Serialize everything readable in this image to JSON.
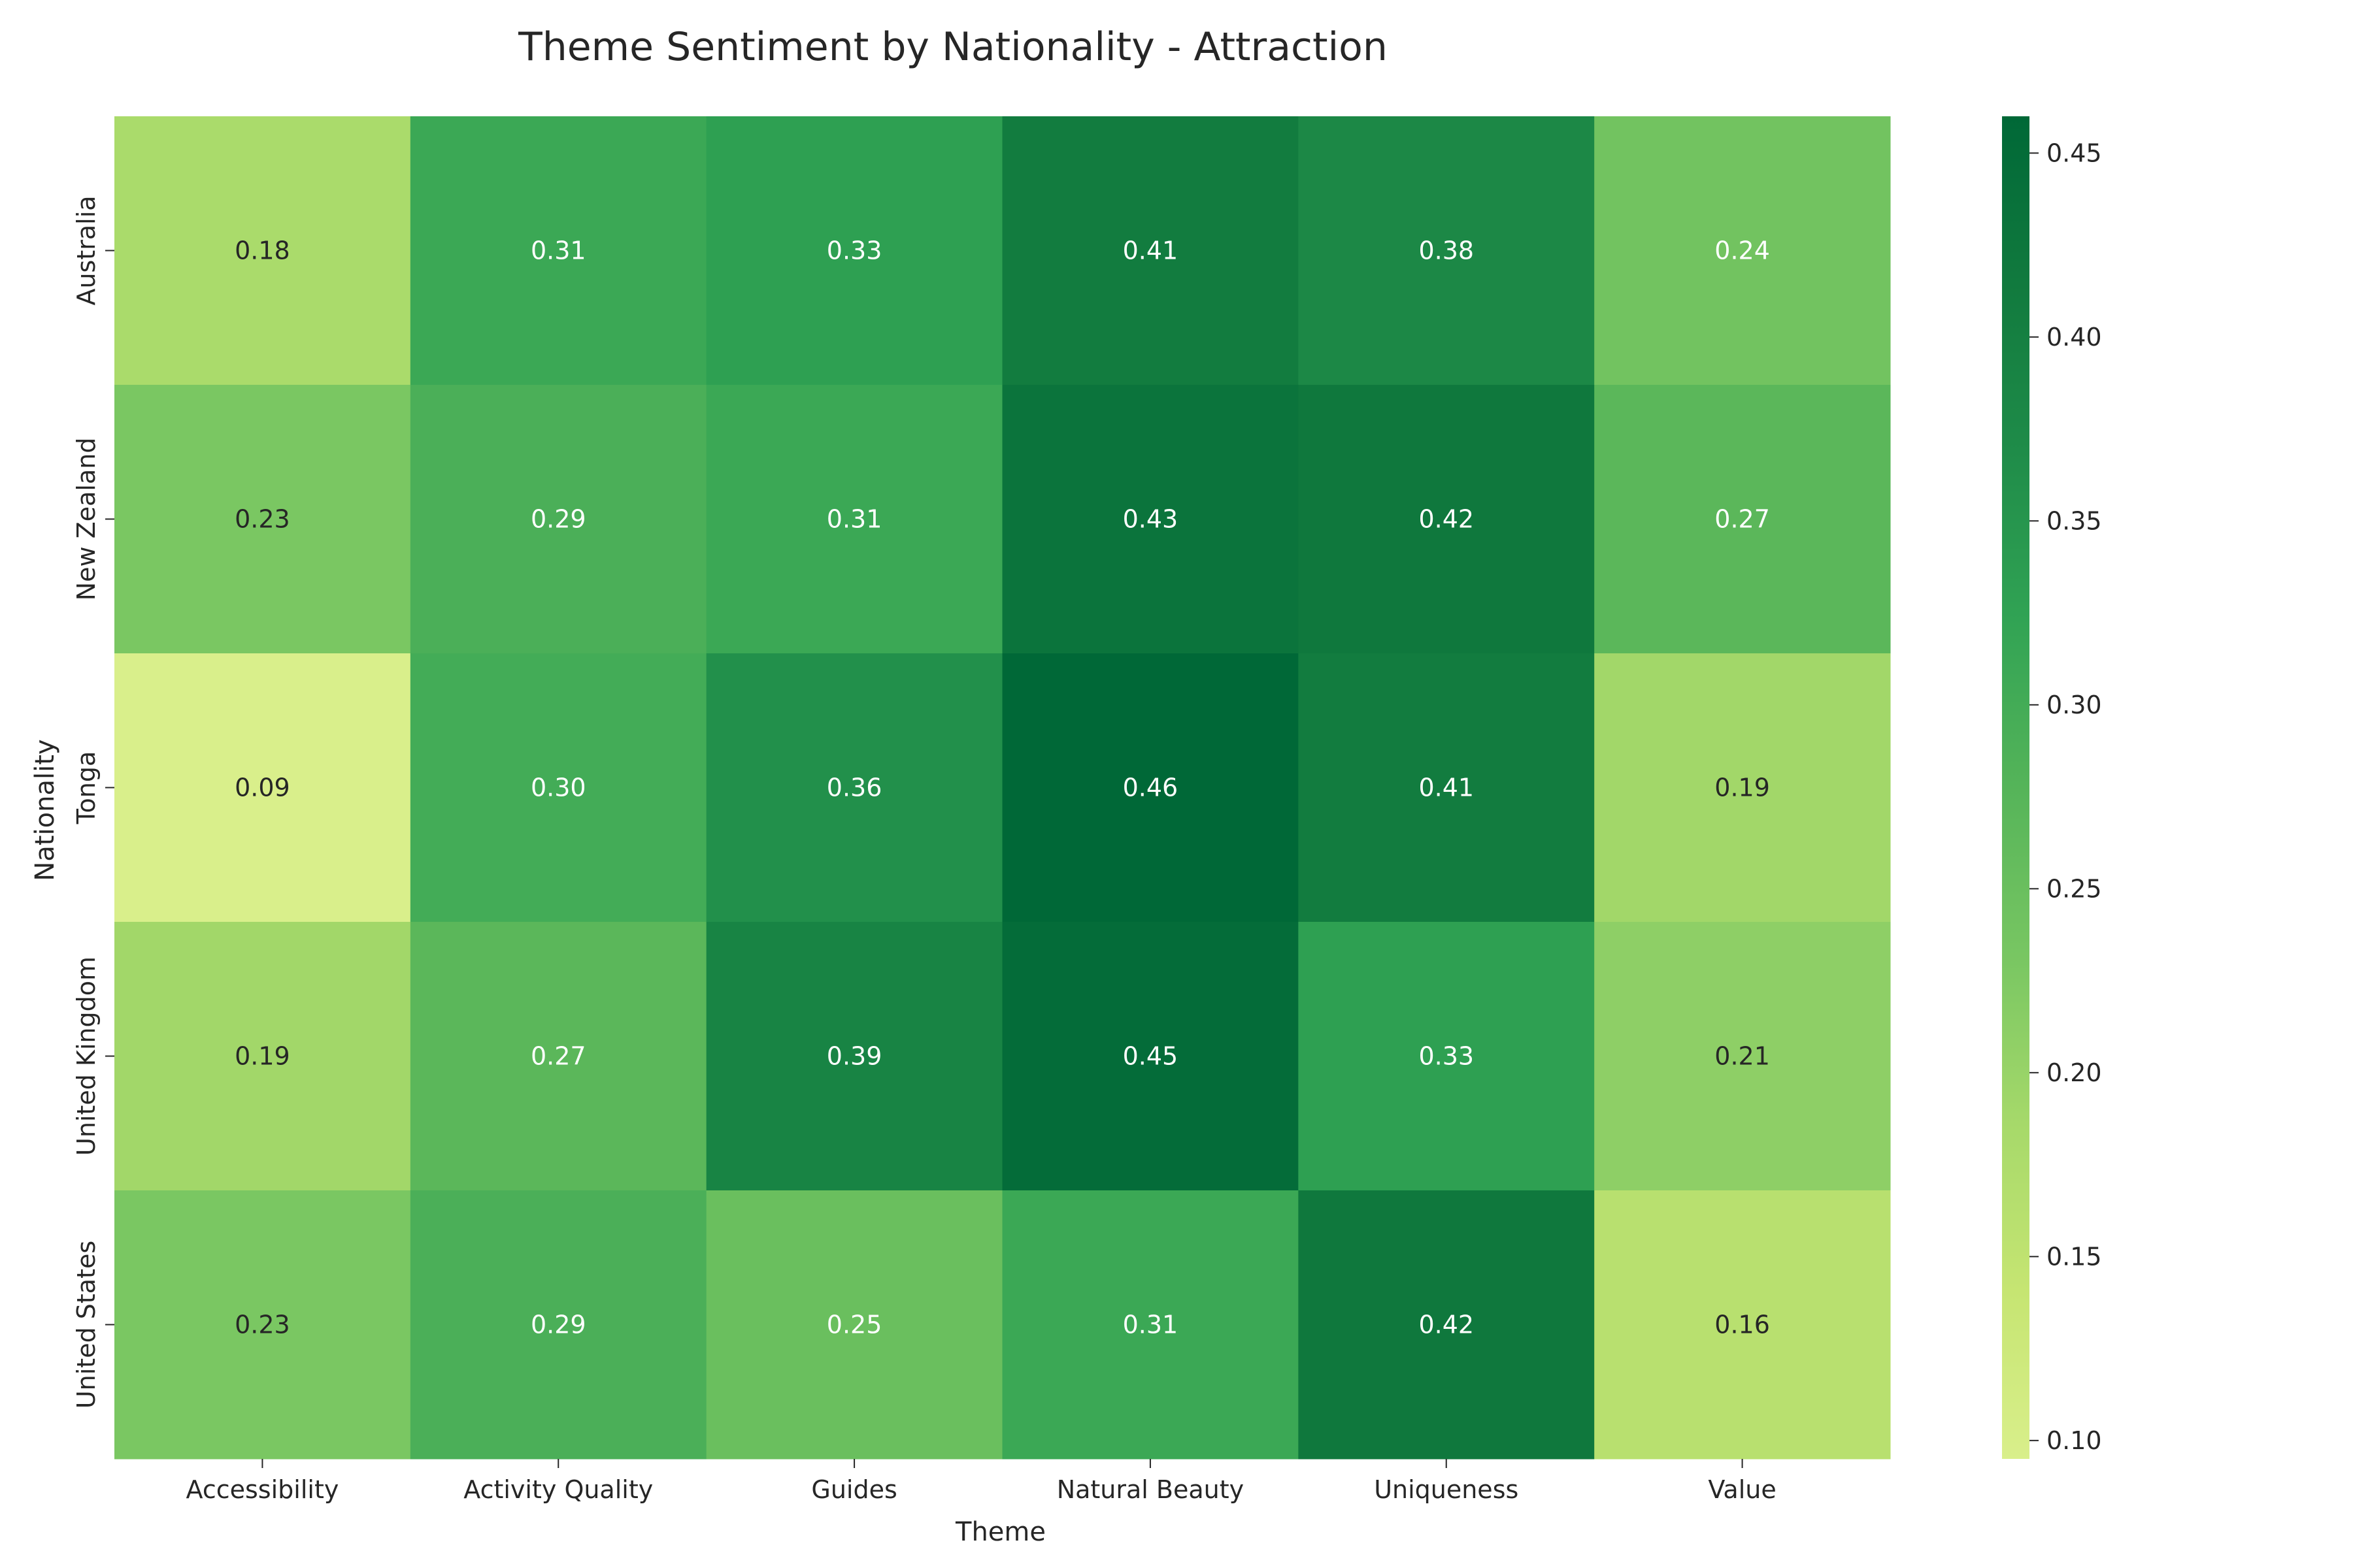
{
  "chart_data": {
    "type": "heatmap",
    "title": "Theme Sentiment by Nationality - Attraction",
    "xlabel": "Theme",
    "ylabel": "Nationality",
    "x_categories": [
      "Accessibility",
      "Activity Quality",
      "Guides",
      "Natural Beauty",
      "Uniqueness",
      "Value"
    ],
    "y_categories": [
      "Australia",
      "New Zealand",
      "Tonga",
      "United Kingdom",
      "United States"
    ],
    "values": [
      [
        0.18,
        0.31,
        0.33,
        0.41,
        0.38,
        0.24
      ],
      [
        0.23,
        0.29,
        0.31,
        0.43,
        0.42,
        0.27
      ],
      [
        0.09,
        0.3,
        0.36,
        0.46,
        0.41,
        0.19
      ],
      [
        0.19,
        0.27,
        0.39,
        0.45,
        0.33,
        0.21
      ],
      [
        0.23,
        0.29,
        0.25,
        0.31,
        0.42,
        0.16
      ]
    ],
    "colormap": "YlGn",
    "colorbar": {
      "range": [
        0.095,
        0.46
      ],
      "ticks": [
        0.1,
        0.15,
        0.2,
        0.25,
        0.3,
        0.35,
        0.4,
        0.45
      ],
      "tick_labels": [
        "0.10",
        "0.15",
        "0.20",
        "0.25",
        "0.30",
        "0.35",
        "0.40",
        "0.45"
      ]
    },
    "grid": false
  }
}
